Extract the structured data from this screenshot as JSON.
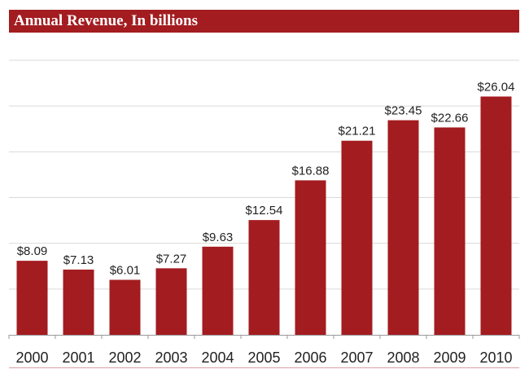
{
  "chart_data": {
    "type": "bar",
    "title": "Annual Revenue, In billions",
    "xlabel": "",
    "ylabel": "",
    "categories": [
      "2000",
      "2001",
      "2002",
      "2003",
      "2004",
      "2005",
      "2006",
      "2007",
      "2008",
      "2009",
      "2010"
    ],
    "values": [
      8.09,
      7.13,
      6.01,
      7.27,
      9.63,
      12.54,
      16.88,
      21.21,
      23.45,
      22.66,
      26.04
    ],
    "data_labels": [
      "$8.09",
      "$7.13",
      "$6.01",
      "$7.27",
      "$9.63",
      "$12.54",
      "$16.88",
      "$21.21",
      "$23.45",
      "$22.66",
      "$26.04"
    ],
    "ylim": [
      0,
      30
    ],
    "gridline_step": 5,
    "grid": true,
    "legend": "none",
    "bar_color": "#a31c20",
    "grid_color": "#d9d9d9"
  }
}
